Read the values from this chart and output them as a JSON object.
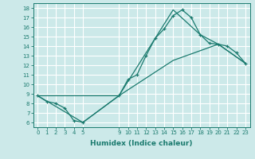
{
  "title": "",
  "xlabel": "Humidex (Indice chaleur)",
  "ylabel": "",
  "background_color": "#cce9e9",
  "grid_color": "#ffffff",
  "line_color": "#1a7a6e",
  "xlim": [
    -0.5,
    23.5
  ],
  "ylim": [
    5.5,
    18.5
  ],
  "xtick_positions": [
    0,
    1,
    2,
    3,
    4,
    5,
    9,
    10,
    11,
    12,
    13,
    14,
    15,
    16,
    17,
    18,
    19,
    20,
    21,
    22,
    23
  ],
  "xtick_labels": [
    "0",
    "1",
    "2",
    "3",
    "4",
    "5",
    "9",
    "10",
    "11",
    "12",
    "13",
    "14",
    "15",
    "16",
    "17",
    "18",
    "19",
    "20",
    "21",
    "22",
    "23"
  ],
  "yticks": [
    6,
    7,
    8,
    9,
    10,
    11,
    12,
    13,
    14,
    15,
    16,
    17,
    18
  ],
  "series": [
    {
      "x": [
        0,
        1,
        2,
        3,
        4,
        5,
        9,
        10,
        11,
        12,
        13,
        14,
        15,
        16,
        17,
        18,
        19,
        20,
        21,
        22,
        23
      ],
      "y": [
        8.8,
        8.2,
        8.0,
        7.5,
        6.2,
        6.0,
        8.8,
        10.5,
        11.0,
        13.0,
        14.8,
        15.8,
        17.2,
        17.8,
        17.0,
        15.2,
        14.3,
        14.2,
        14.0,
        13.3,
        12.2
      ],
      "marker": true
    },
    {
      "x": [
        0,
        5,
        9,
        15,
        20,
        23
      ],
      "y": [
        8.8,
        6.0,
        8.8,
        12.5,
        14.2,
        12.2
      ],
      "marker": false
    },
    {
      "x": [
        0,
        9,
        15,
        18,
        20,
        23
      ],
      "y": [
        8.8,
        8.8,
        17.8,
        15.2,
        14.2,
        12.2
      ],
      "marker": false
    }
  ]
}
